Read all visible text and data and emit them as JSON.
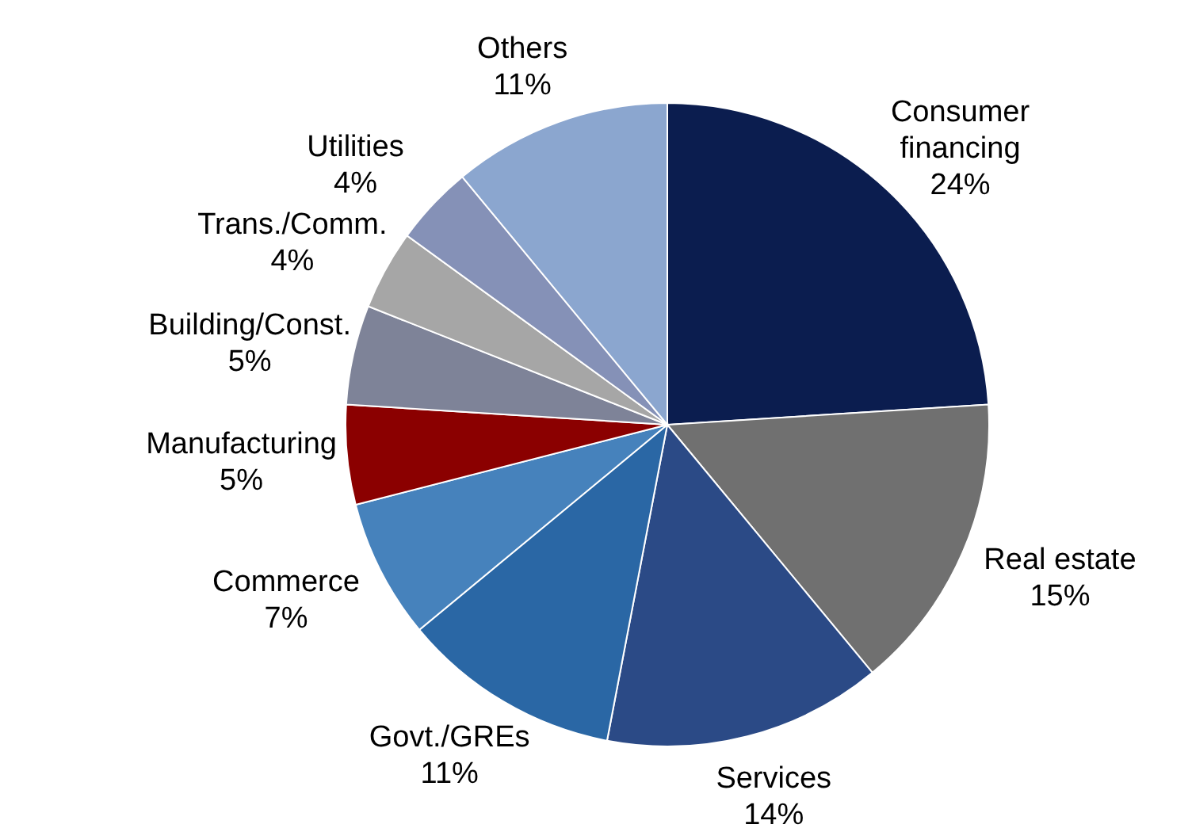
{
  "chart_data": {
    "type": "pie",
    "categories": [
      "Consumer financing",
      "Real estate",
      "Services",
      "Govt./GREs",
      "Commerce",
      "Manufacturing",
      "Building/Const.",
      "Trans./Comm.",
      "Utilities",
      "Others"
    ],
    "values": [
      24,
      15,
      14,
      11,
      7,
      5,
      5,
      4,
      4,
      11
    ],
    "value_labels": [
      "24%",
      "15%",
      "14%",
      "11%",
      "7%",
      "5%",
      "5%",
      "4%",
      "4%",
      "11%"
    ],
    "colors": [
      "#0b1d4f",
      "#707070",
      "#2b4a86",
      "#2a67a5",
      "#4682bc",
      "#8b0000",
      "#7e8398",
      "#a6a6a6",
      "#8591b7",
      "#8ba6cf"
    ]
  }
}
